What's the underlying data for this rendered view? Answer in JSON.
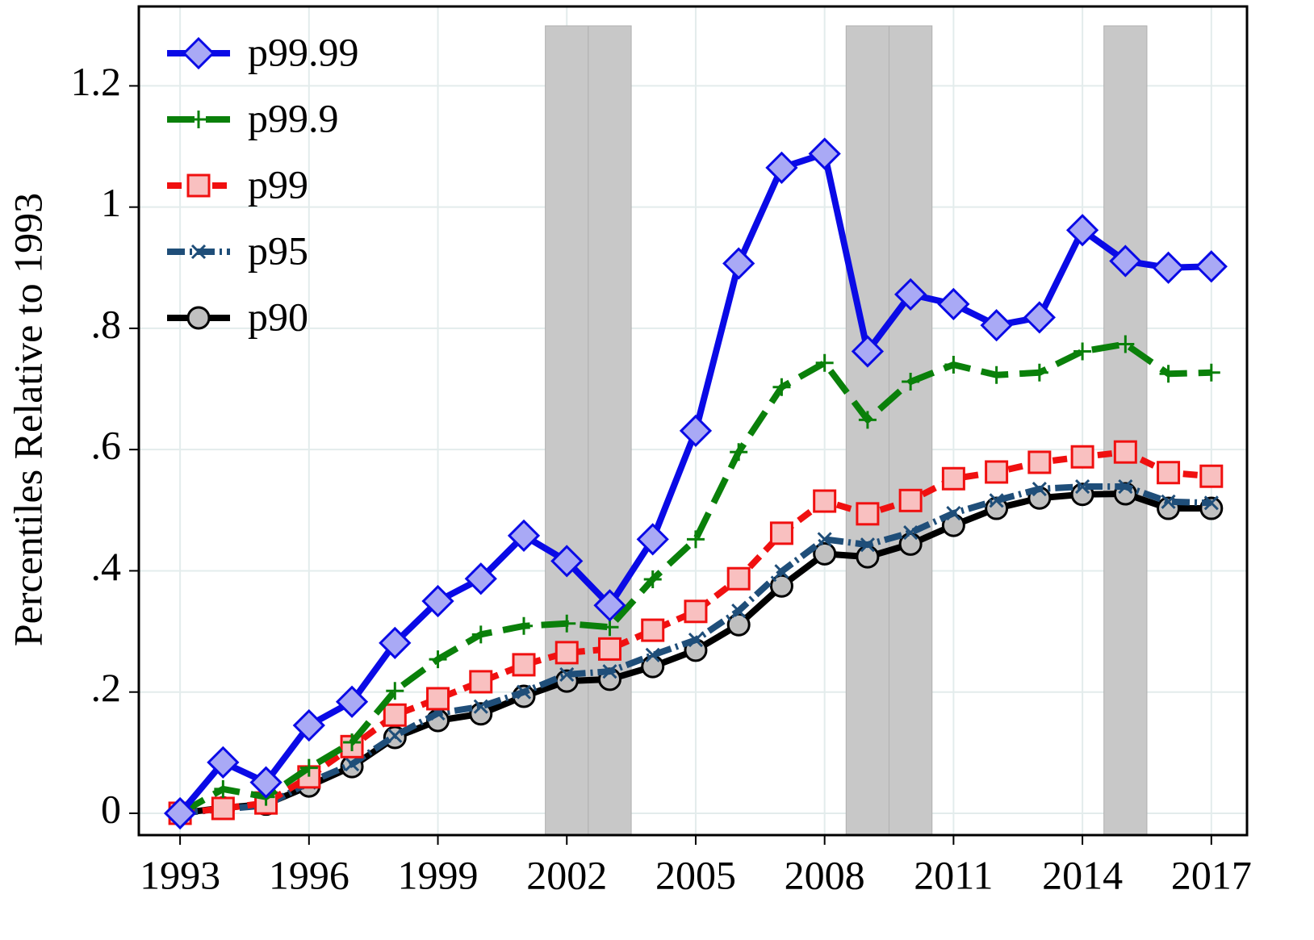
{
  "chart_data": {
    "type": "line",
    "y_label": "Percentiles Relative to 1993",
    "x": [
      1993,
      1994,
      1995,
      1996,
      1997,
      1998,
      1999,
      2000,
      2001,
      2002,
      2003,
      2004,
      2005,
      2006,
      2007,
      2008,
      2009,
      2010,
      2011,
      2012,
      2013,
      2014,
      2015,
      2016,
      2017
    ],
    "series": [
      {
        "name": "p99.99",
        "color": "#0a0ae6",
        "marker": "diamond",
        "marker_fill": "#a9a9f5",
        "dash": "solid",
        "values": [
          0,
          0.084,
          0.051,
          0.145,
          0.184,
          0.281,
          0.35,
          0.387,
          0.458,
          0.416,
          0.343,
          0.452,
          0.631,
          0.907,
          1.065,
          1.088,
          0.762,
          0.856,
          0.84,
          0.805,
          0.818,
          0.962,
          0.911,
          0.9,
          0.902
        ]
      },
      {
        "name": "p99.9",
        "color": "#0a800a",
        "marker": "plus",
        "marker_fill": "#0a800a",
        "dash": "longdash",
        "values": [
          0,
          0.04,
          0.027,
          0.075,
          0.117,
          0.202,
          0.254,
          0.295,
          0.309,
          0.313,
          0.307,
          0.386,
          0.452,
          0.596,
          0.703,
          0.743,
          0.649,
          0.712,
          0.74,
          0.723,
          0.727,
          0.762,
          0.774,
          0.725,
          0.727
        ]
      },
      {
        "name": "p99",
        "color": "#f01010",
        "marker": "square",
        "marker_fill": "#f9c0c0",
        "dash": "dashed",
        "values": [
          0,
          0.008,
          0.017,
          0.06,
          0.11,
          0.162,
          0.189,
          0.217,
          0.245,
          0.265,
          0.271,
          0.302,
          0.333,
          0.387,
          0.462,
          0.515,
          0.494,
          0.516,
          0.552,
          0.563,
          0.579,
          0.588,
          0.596,
          0.562,
          0.556
        ]
      },
      {
        "name": "p95",
        "color": "#1f4e79",
        "marker": "x",
        "marker_fill": "#1f4e79",
        "dash": "dashdot",
        "values": [
          0,
          0.007,
          0.013,
          0.051,
          0.081,
          0.128,
          0.165,
          0.176,
          0.2,
          0.229,
          0.234,
          0.261,
          0.286,
          0.334,
          0.399,
          0.452,
          0.443,
          0.463,
          0.495,
          0.516,
          0.535,
          0.539,
          0.539,
          0.514,
          0.512
        ]
      },
      {
        "name": "p90",
        "color": "#000000",
        "marker": "circle",
        "marker_fill": "#c0c0c0",
        "dash": "solid",
        "values": [
          0,
          0.009,
          0.015,
          0.045,
          0.077,
          0.125,
          0.153,
          0.164,
          0.193,
          0.218,
          0.221,
          0.242,
          0.269,
          0.311,
          0.375,
          0.428,
          0.423,
          0.444,
          0.475,
          0.503,
          0.52,
          0.526,
          0.527,
          0.503,
          0.503
        ]
      }
    ],
    "shaded_periods": [
      [
        2001.5,
        2002.5
      ],
      [
        2002.5,
        2003.5
      ],
      [
        2008.5,
        2009.5
      ],
      [
        2009.5,
        2010.5
      ],
      [
        2014.5,
        2015.5
      ]
    ],
    "shade_color": "#c8c8c8",
    "xlim": [
      1992.04,
      2017.83
    ],
    "xticks": [
      1993,
      1996,
      1999,
      2002,
      2005,
      2008,
      2011,
      2014,
      2017
    ],
    "ylim": [
      -0.036,
      1.331
    ],
    "yticks": [
      0,
      {
        "value": 0.2,
        "label": ".2"
      },
      {
        "value": 0.4,
        "label": ".4"
      },
      {
        "value": 0.6,
        "label": ".6"
      },
      {
        "value": 0.8,
        "label": ".8"
      },
      1,
      1.2
    ],
    "grid": true,
    "legend": "upper left"
  }
}
